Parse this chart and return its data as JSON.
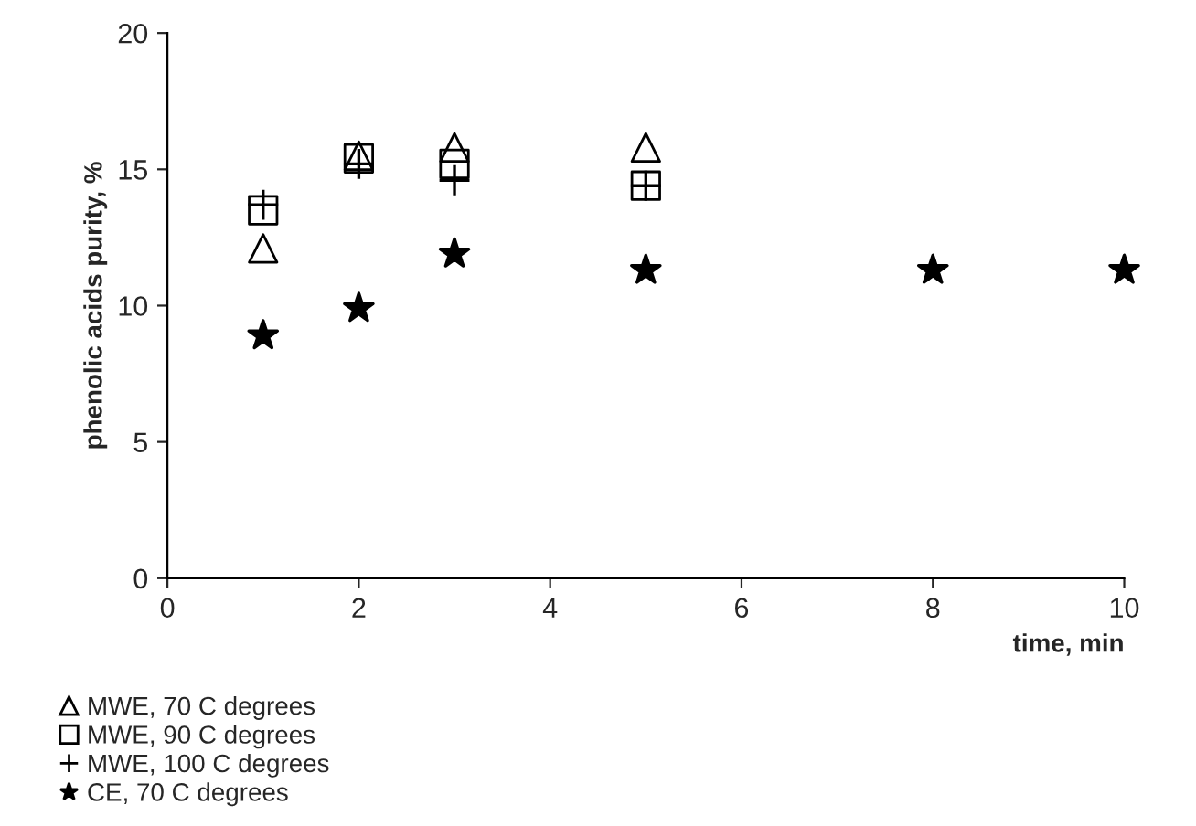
{
  "chart_data": {
    "type": "scatter",
    "xlabel": "time, min",
    "ylabel": "phenolic acids purity, %",
    "xlim": [
      0,
      10
    ],
    "xticks": [
      0,
      2,
      4,
      6,
      8,
      10
    ],
    "ylim": [
      0,
      20
    ],
    "yticks": [
      0,
      5,
      10,
      15,
      20
    ],
    "grid": false,
    "legend": "bottom left",
    "series": [
      {
        "name": "MWE, 70 C degrees",
        "color": "#000000",
        "marker": "triangle",
        "x": [
          1,
          2,
          3,
          5
        ],
        "values": [
          12.1,
          15.5,
          15.8,
          15.8
        ]
      },
      {
        "name": "MWE, 90 C degrees",
        "color": "#000000",
        "marker": "square",
        "x": [
          1,
          2,
          3,
          5
        ],
        "values": [
          13.5,
          15.4,
          15.2,
          14.4
        ]
      },
      {
        "name": "MWE, 100 C degrees",
        "color": "#000000",
        "marker": "cross",
        "x": [
          1,
          2,
          3,
          5
        ],
        "values": [
          13.7,
          15.2,
          14.6,
          14.4
        ]
      },
      {
        "name": "CE, 70 C degrees",
        "color": "#000000",
        "marker": "star",
        "x": [
          1,
          2,
          3,
          5,
          8,
          10
        ],
        "values": [
          8.9,
          9.9,
          11.9,
          11.3,
          11.3,
          11.3
        ]
      }
    ]
  }
}
